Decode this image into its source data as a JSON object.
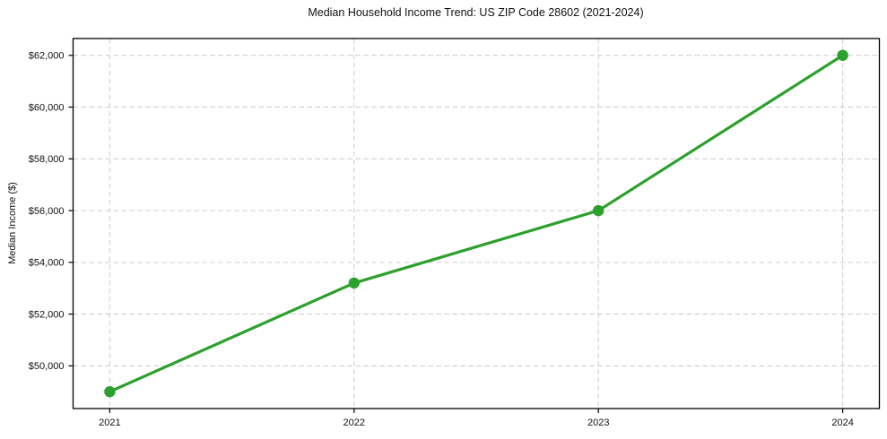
{
  "chart_data": {
    "type": "line",
    "title": "Median Household Income Trend: US ZIP Code 28602 (2021-2024)",
    "xlabel": "",
    "ylabel": "Median Income ($)",
    "x": [
      2021,
      2022,
      2023,
      2024
    ],
    "values": [
      49000,
      53200,
      56000,
      62000
    ],
    "series_name": "Median Household Income",
    "xticks": [
      2021,
      2022,
      2023,
      2024
    ],
    "xtick_labels": [
      "2021",
      "2022",
      "2023",
      "2024"
    ],
    "yticks": [
      50000,
      52000,
      54000,
      56000,
      58000,
      60000,
      62000
    ],
    "ytick_labels": [
      "$50,000",
      "$52,000",
      "$54,000",
      "$56,000",
      "$58,000",
      "$60,000",
      "$62,000"
    ],
    "xlim": [
      2020.85,
      2024.15
    ],
    "ylim": [
      48350,
      62650
    ],
    "grid": true,
    "grid_style": "dashed",
    "legend_position": "none",
    "line_color": "#2ca02c",
    "marker_color": "#2ca02c",
    "grid_color": "#cccccc",
    "axis_color": "#000000",
    "text_color": "#111111",
    "background_color": "#ffffff"
  }
}
